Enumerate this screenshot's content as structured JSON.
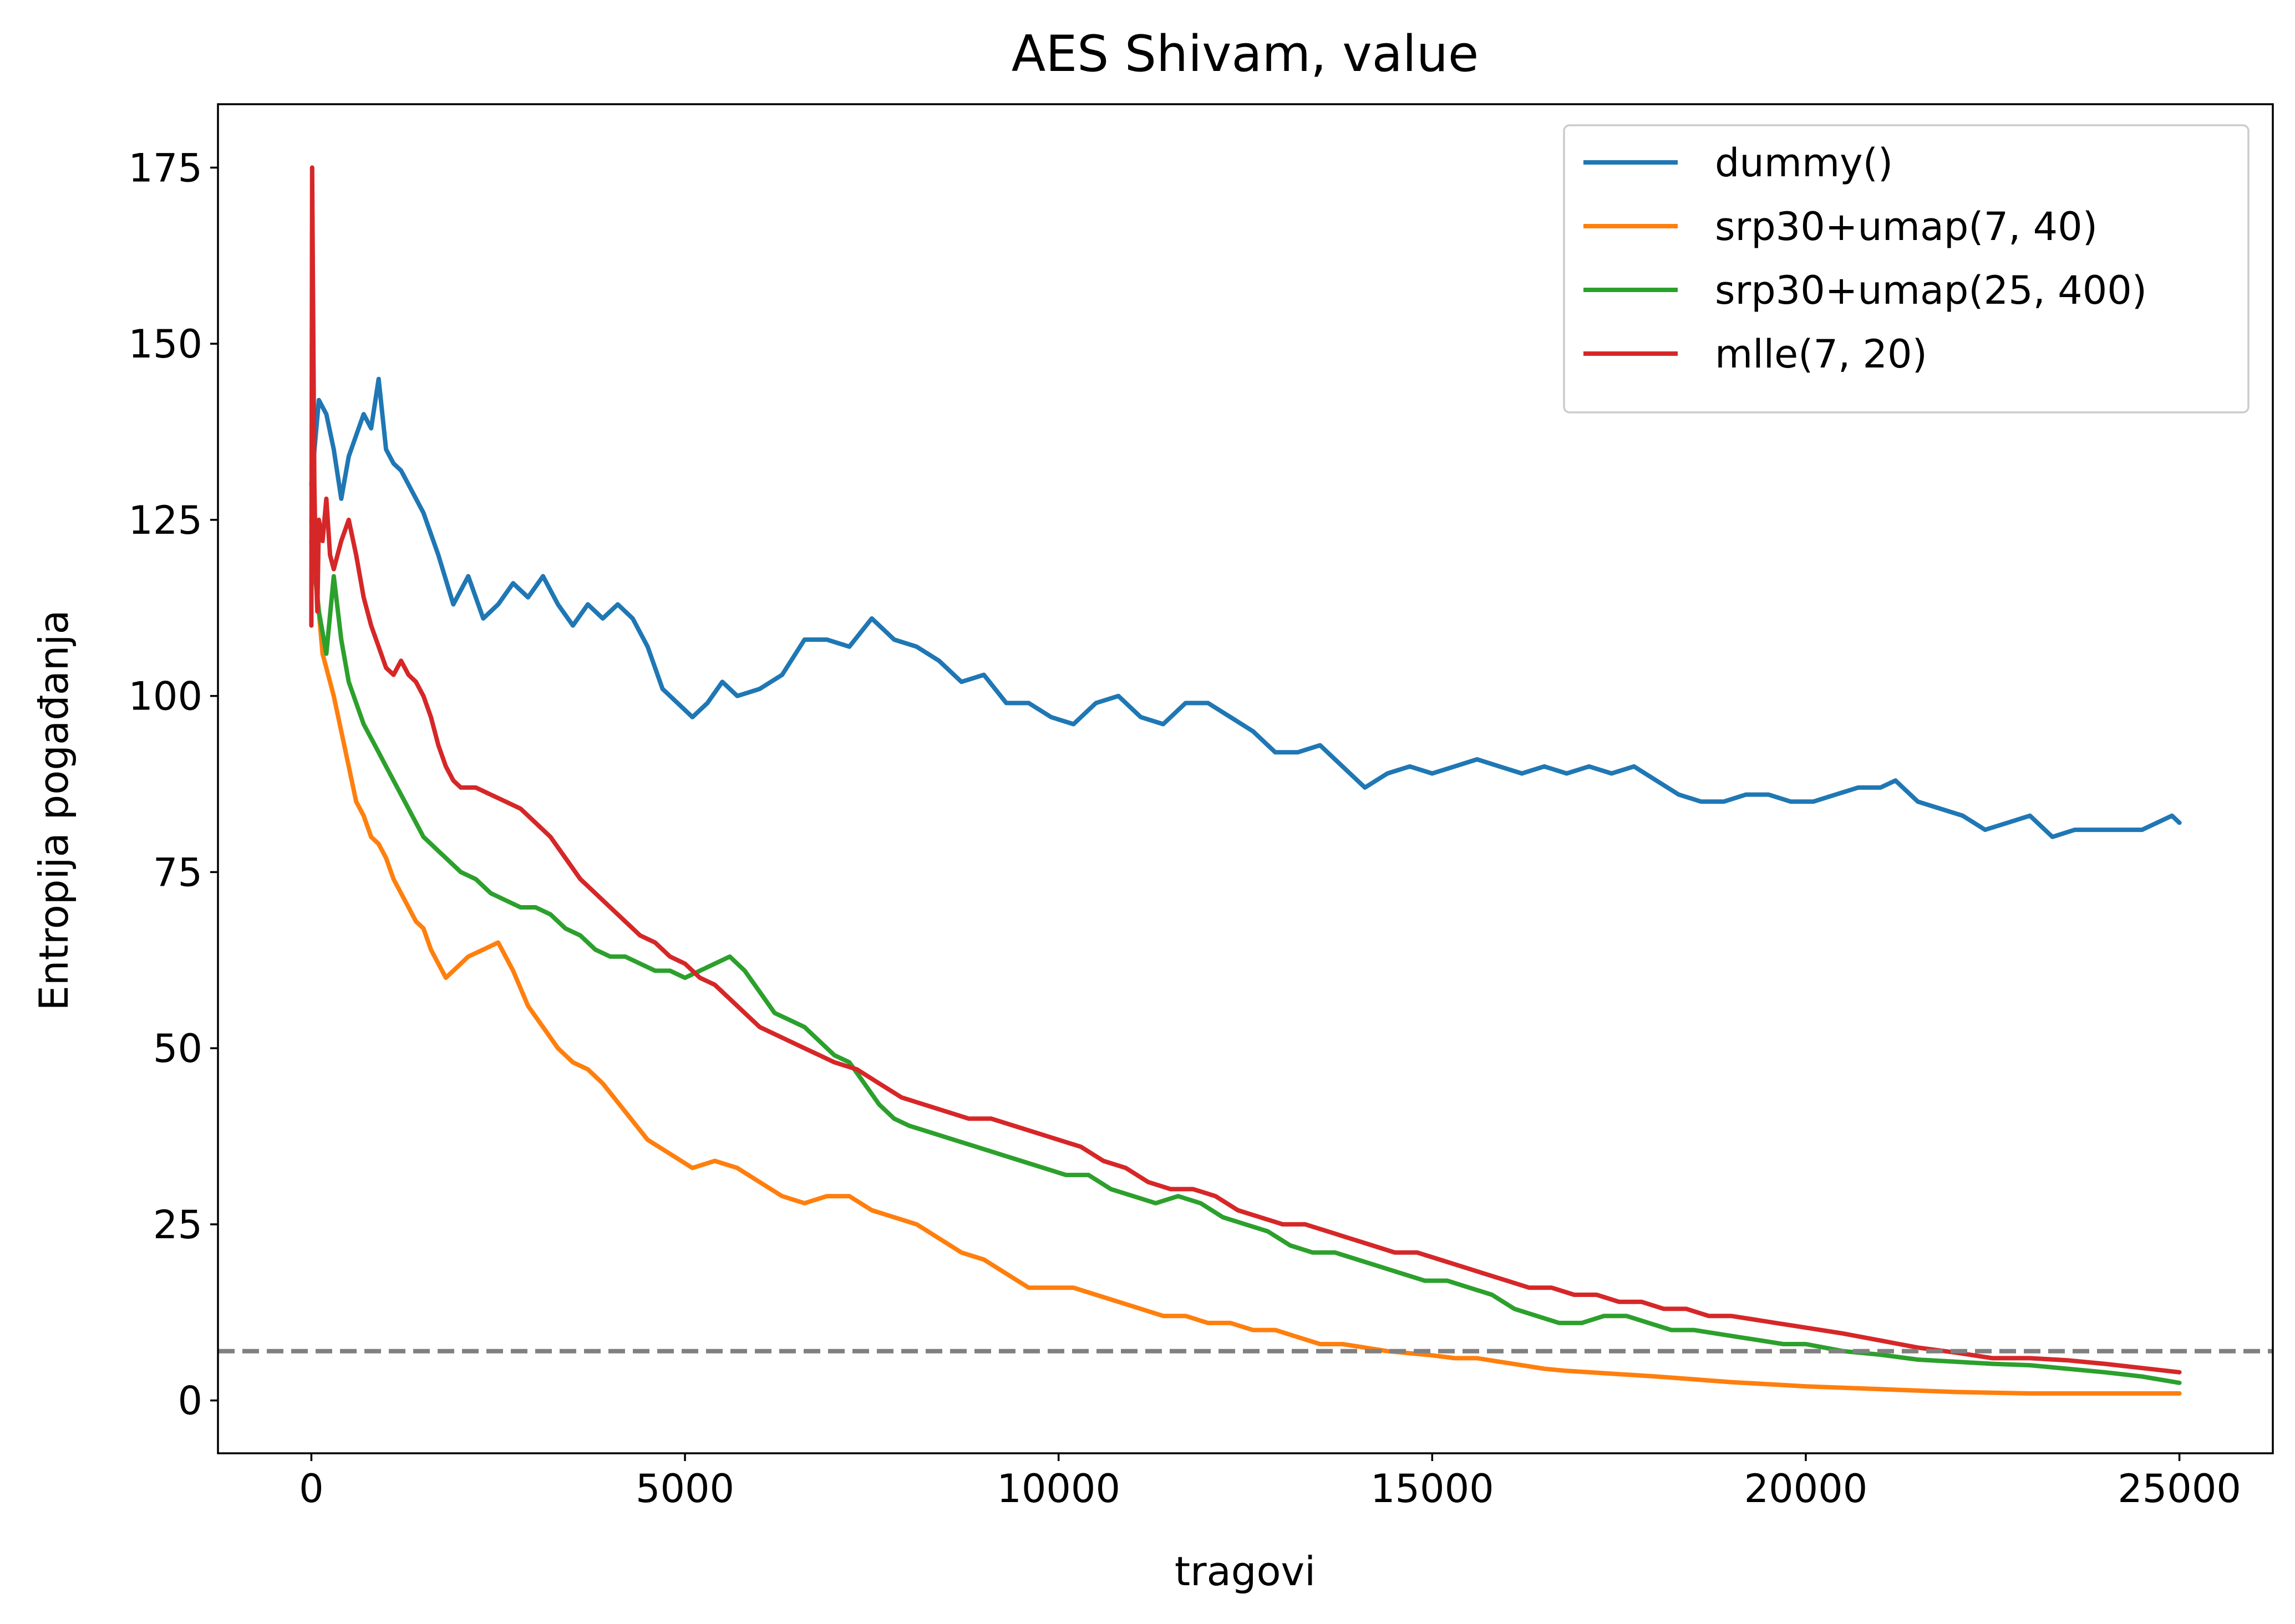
{
  "chart_data": {
    "type": "line",
    "title": "AES Shivam, value",
    "xlabel": "tragovi",
    "ylabel": "Entropija pogađanja",
    "xlim": [
      -1250,
      26250
    ],
    "ylim": [
      -7.5,
      184
    ],
    "xticks": [
      0,
      5000,
      10000,
      15000,
      20000,
      25000
    ],
    "yticks": [
      0,
      25,
      50,
      75,
      100,
      125,
      150,
      175
    ],
    "xtick_labels": [
      "0",
      "5000",
      "10000",
      "15000",
      "20000",
      "25000"
    ],
    "ytick_labels": [
      "0",
      "25",
      "50",
      "75",
      "100",
      "125",
      "150",
      "175"
    ],
    "grid": false,
    "legend_position": "top-right",
    "threshold": {
      "y": 7,
      "style": "dashed",
      "color": "#808080"
    },
    "series": [
      {
        "name": "dummy()",
        "color": "#1f77b4",
        "x": [
          0,
          100,
          200,
          300,
          400,
          500,
          600,
          700,
          800,
          900,
          1000,
          1100,
          1200,
          1300,
          1500,
          1700,
          1900,
          2100,
          2300,
          2500,
          2700,
          2900,
          3100,
          3300,
          3500,
          3700,
          3900,
          4100,
          4300,
          4500,
          4700,
          4900,
          5100,
          5300,
          5500,
          5700,
          6000,
          6300,
          6600,
          6900,
          7200,
          7500,
          7800,
          8100,
          8400,
          8700,
          9000,
          9300,
          9600,
          9900,
          10200,
          10500,
          10800,
          11100,
          11400,
          11700,
          12000,
          12300,
          12600,
          12900,
          13200,
          13500,
          13800,
          14100,
          14400,
          14700,
          15000,
          15300,
          15600,
          15900,
          16200,
          16500,
          16800,
          17100,
          17400,
          17700,
          18000,
          18300,
          18600,
          18900,
          19200,
          19500,
          19800,
          20100,
          20400,
          20700,
          21000,
          21200,
          21500,
          21800,
          22100,
          22400,
          22700,
          23000,
          23300,
          23600,
          23900,
          24200,
          24500,
          24700,
          24900,
          25000
        ],
        "y": [
          130,
          142,
          140,
          135,
          128,
          134,
          137,
          140,
          138,
          145,
          135,
          133,
          132,
          130,
          126,
          120,
          113,
          117,
          111,
          113,
          116,
          114,
          117,
          113,
          110,
          113,
          111,
          113,
          111,
          107,
          101,
          99,
          97,
          99,
          102,
          100,
          101,
          103,
          108,
          108,
          107,
          111,
          108,
          107,
          105,
          102,
          103,
          99,
          99,
          97,
          96,
          99,
          100,
          97,
          96,
          99,
          99,
          97,
          95,
          92,
          92,
          93,
          90,
          87,
          89,
          90,
          89,
          90,
          91,
          90,
          89,
          90,
          89,
          90,
          89,
          90,
          88,
          86,
          85,
          85,
          86,
          86,
          85,
          85,
          86,
          87,
          87,
          88,
          85,
          84,
          83,
          81,
          82,
          83,
          80,
          81,
          81,
          81,
          81,
          82,
          83,
          82
        ]
      },
      {
        "name": "srp30+umap(7, 40)",
        "color": "#ff7f0e",
        "x": [
          0,
          50,
          100,
          150,
          200,
          300,
          400,
          500,
          600,
          700,
          800,
          900,
          1000,
          1100,
          1200,
          1300,
          1400,
          1500,
          1600,
          1700,
          1800,
          1900,
          2000,
          2100,
          2300,
          2500,
          2700,
          2900,
          3100,
          3300,
          3500,
          3700,
          3900,
          4200,
          4500,
          4800,
          5100,
          5400,
          5700,
          6000,
          6300,
          6600,
          6900,
          7200,
          7500,
          7800,
          8100,
          8400,
          8700,
          9000,
          9300,
          9600,
          9900,
          10200,
          10500,
          10800,
          11100,
          11400,
          11700,
          12000,
          12300,
          12600,
          12900,
          13200,
          13500,
          13800,
          14100,
          14400,
          14700,
          15000,
          15300,
          15600,
          15900,
          16200,
          16500,
          16800,
          17100,
          17400,
          17700,
          18000,
          18500,
          19000,
          19500,
          20000,
          20500,
          21000,
          21500,
          22000,
          22500,
          23000,
          23500,
          24000,
          24500,
          25000
        ],
        "y": [
          125,
          118,
          112,
          106,
          104,
          100,
          95,
          90,
          85,
          83,
          80,
          79,
          77,
          74,
          72,
          70,
          68,
          67,
          64,
          62,
          60,
          61,
          62,
          63,
          64,
          65,
          61,
          56,
          53,
          50,
          48,
          47,
          45,
          41,
          37,
          35,
          33,
          34,
          33,
          31,
          29,
          28,
          29,
          29,
          27,
          26,
          25,
          23,
          21,
          20,
          18,
          16,
          16,
          16,
          15,
          14,
          13,
          12,
          12,
          11,
          11,
          10,
          10,
          9,
          8,
          8,
          7.5,
          7,
          6.7,
          6.4,
          6,
          6,
          5.5,
          5,
          4.5,
          4.2,
          4,
          3.8,
          3.6,
          3.4,
          3,
          2.6,
          2.3,
          2,
          1.8,
          1.6,
          1.4,
          1.2,
          1.1,
          1,
          1,
          1,
          1,
          1
        ]
      },
      {
        "name": "srp30+umap(25, 400)",
        "color": "#2ca02c",
        "x": [
          0,
          100,
          200,
          300,
          400,
          500,
          600,
          700,
          800,
          900,
          1000,
          1100,
          1200,
          1300,
          1400,
          1500,
          1600,
          1700,
          1800,
          1900,
          2000,
          2200,
          2400,
          2600,
          2800,
          3000,
          3200,
          3400,
          3600,
          3800,
          4000,
          4200,
          4400,
          4600,
          4800,
          5000,
          5200,
          5400,
          5600,
          5800,
          6000,
          6200,
          6400,
          6600,
          6800,
          7000,
          7200,
          7400,
          7600,
          7800,
          8000,
          8300,
          8600,
          8900,
          9200,
          9500,
          9800,
          10100,
          10400,
          10700,
          11000,
          11300,
          11600,
          11900,
          12200,
          12500,
          12800,
          13100,
          13400,
          13700,
          14000,
          14300,
          14600,
          14900,
          15200,
          15500,
          15800,
          16100,
          16400,
          16700,
          17000,
          17300,
          17600,
          17900,
          18200,
          18500,
          18800,
          19100,
          19400,
          19700,
          20000,
          20500,
          21000,
          21500,
          22000,
          22500,
          23000,
          23500,
          24000,
          24500,
          25000
        ],
        "y": [
          122,
          112,
          106,
          117,
          108,
          102,
          99,
          96,
          94,
          92,
          90,
          88,
          86,
          84,
          82,
          80,
          79,
          78,
          77,
          76,
          75,
          74,
          72,
          71,
          70,
          70,
          69,
          67,
          66,
          64,
          63,
          63,
          62,
          61,
          61,
          60,
          61,
          62,
          63,
          61,
          58,
          55,
          54,
          53,
          51,
          49,
          48,
          45,
          42,
          40,
          39,
          38,
          37,
          36,
          35,
          34,
          33,
          32,
          32,
          30,
          29,
          28,
          29,
          28,
          26,
          25,
          24,
          22,
          21,
          21,
          20,
          19,
          18,
          17,
          17,
          16,
          15,
          13,
          12,
          11,
          11,
          12,
          12,
          11,
          10,
          10,
          9.5,
          9,
          8.5,
          8,
          8,
          7,
          6.5,
          5.8,
          5.5,
          5.2,
          5,
          4.5,
          4,
          3.4,
          2.5
        ]
      },
      {
        "name": "mlle(7, 20)",
        "color": "#d62728",
        "x": [
          0,
          10,
          20,
          40,
          60,
          80,
          100,
          150,
          200,
          250,
          300,
          400,
          500,
          600,
          700,
          800,
          900,
          1000,
          1100,
          1200,
          1300,
          1400,
          1500,
          1600,
          1700,
          1800,
          1900,
          2000,
          2200,
          2400,
          2600,
          2800,
          3000,
          3200,
          3400,
          3600,
          3800,
          4000,
          4200,
          4400,
          4600,
          4800,
          5000,
          5200,
          5400,
          5600,
          5800,
          6000,
          6200,
          6400,
          6600,
          6800,
          7000,
          7300,
          7600,
          7900,
          8200,
          8500,
          8800,
          9100,
          9400,
          9700,
          10000,
          10300,
          10600,
          10900,
          11200,
          11500,
          11800,
          12100,
          12400,
          12700,
          13000,
          13300,
          13600,
          13900,
          14200,
          14500,
          14800,
          15100,
          15400,
          15700,
          16000,
          16300,
          16600,
          16900,
          17200,
          17500,
          17800,
          18100,
          18400,
          18700,
          19000,
          19300,
          19600,
          19900,
          20200,
          20500,
          21000,
          21500,
          22000,
          22500,
          23000,
          23500,
          24000,
          24500,
          25000
        ],
        "y": [
          110,
          175,
          160,
          130,
          118,
          112,
          125,
          122,
          128,
          120,
          118,
          122,
          125,
          120,
          114,
          110,
          107,
          104,
          103,
          105,
          103,
          102,
          100,
          97,
          93,
          90,
          88,
          87,
          87,
          86,
          85,
          84,
          82,
          80,
          77,
          74,
          72,
          70,
          68,
          66,
          65,
          63,
          62,
          60,
          59,
          57,
          55,
          53,
          52,
          51,
          50,
          49,
          48,
          47,
          45,
          43,
          42,
          41,
          40,
          40,
          39,
          38,
          37,
          36,
          34,
          33,
          31,
          30,
          30,
          29,
          27,
          26,
          25,
          25,
          24,
          23,
          22,
          21,
          21,
          20,
          19,
          18,
          17,
          16,
          16,
          15,
          15,
          14,
          14,
          13,
          13,
          12,
          12,
          11.5,
          11,
          10.5,
          10,
          9.5,
          8.5,
          7.5,
          6.8,
          6,
          6,
          5.7,
          5.2,
          4.6,
          4
        ]
      }
    ]
  }
}
